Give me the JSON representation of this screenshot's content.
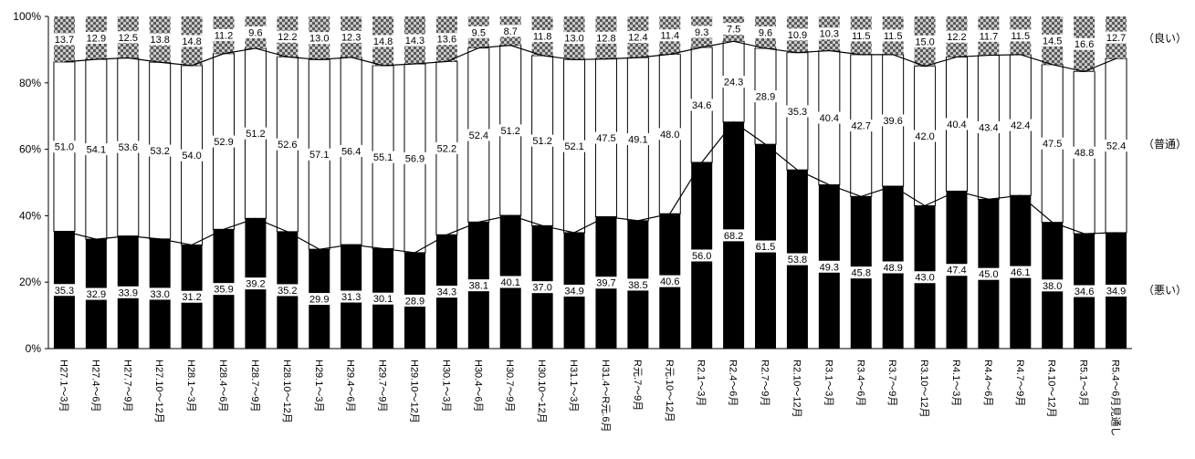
{
  "chart_data": {
    "type": "bar",
    "stacked": true,
    "normalized": true,
    "title": "",
    "xlabel": "",
    "ylabel": "",
    "ylim": [
      0,
      100
    ],
    "y_ticks": [
      "0%",
      "20%",
      "40%",
      "60%",
      "80%",
      "100%"
    ],
    "grid": false,
    "legend_position": "right",
    "categories": [
      "H27.1～3月",
      "H27.4～6月",
      "H27.7～9月",
      "H27.10～12月",
      "H28.1～3月",
      "H28.4～6月",
      "H28.7～9月",
      "H28.10～12月",
      "H29.1～3月",
      "H29.4～6月",
      "H29.7～9月",
      "H29.10～12月",
      "H30.1～3月",
      "H30.4～6月",
      "H30.7～9月",
      "H30.10～12月",
      "H31.1～3月",
      "H31.4～R元.6月",
      "R元.7～9月",
      "R元.10～12月",
      "R2.1～3月",
      "R2.4～6月",
      "R2.7～9月",
      "R2.10～12月",
      "R3.1～3月",
      "R3.4～6月",
      "R3.7～9月",
      "R3.10～12月",
      "R4.1～3月",
      "R4.4～6月",
      "R4.7～9月",
      "R4.10～12月",
      "R5.1～3月",
      "R5.4～6月見通し"
    ],
    "series": [
      {
        "name": "（悪い）",
        "color": "#000000",
        "values": [
          35.3,
          32.9,
          33.9,
          33.0,
          31.2,
          35.9,
          39.2,
          35.2,
          29.9,
          31.3,
          30.1,
          28.9,
          34.3,
          38.1,
          40.1,
          37.0,
          34.9,
          39.7,
          38.5,
          40.6,
          56.0,
          68.2,
          61.5,
          53.8,
          49.3,
          45.8,
          48.9,
          43.0,
          47.4,
          45.0,
          46.1,
          38.0,
          34.6,
          34.9
        ]
      },
      {
        "name": "（普通）",
        "color": "#ffffff",
        "values": [
          51.0,
          54.1,
          53.6,
          53.2,
          54.0,
          52.9,
          51.2,
          52.6,
          57.1,
          56.4,
          55.1,
          56.9,
          52.2,
          52.4,
          51.2,
          51.2,
          52.1,
          47.5,
          49.1,
          48.0,
          34.6,
          24.3,
          28.9,
          35.3,
          40.4,
          42.7,
          39.6,
          42.0,
          40.4,
          43.4,
          42.4,
          47.5,
          48.8,
          52.4
        ]
      },
      {
        "name": "（良い）",
        "color": "#9a9a9a",
        "values": [
          13.7,
          12.9,
          12.5,
          13.8,
          14.8,
          11.2,
          9.6,
          12.2,
          13.0,
          12.3,
          14.8,
          14.3,
          13.6,
          9.5,
          8.7,
          11.8,
          13.0,
          12.8,
          12.4,
          11.4,
          9.3,
          7.5,
          9.6,
          10.9,
          10.3,
          11.5,
          11.5,
          15.0,
          12.2,
          11.7,
          11.5,
          14.5,
          16.6,
          12.7
        ]
      }
    ]
  }
}
